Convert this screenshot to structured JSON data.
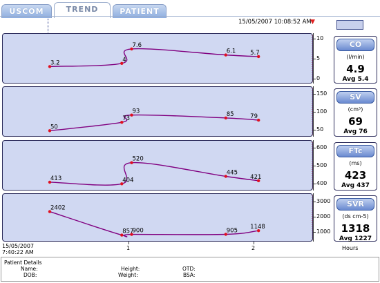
{
  "tabs": [
    {
      "label": "USCOM",
      "active": false
    },
    {
      "label": "TREND",
      "active": true
    },
    {
      "label": "PATIENT",
      "active": false
    }
  ],
  "header": {
    "timestamp": "15/05/2007   10:08:52 AM",
    "marker_icon": "red-down-arrow"
  },
  "x_axis": {
    "start_label": "15/05/2007",
    "start_time": "7:40:22 AM",
    "ticks": [
      "1",
      "2"
    ],
    "unit": "Hours"
  },
  "params": [
    {
      "name": "CO",
      "unit": "(l/min)",
      "value": "4.9",
      "avg": "Avg 5.4",
      "color": "#800080"
    },
    {
      "name": "SV",
      "unit": "(cm³)",
      "value": "69",
      "avg": "Avg 76",
      "color": "#800080"
    },
    {
      "name": "FTc",
      "unit": "(ms)",
      "value": "423",
      "avg": "Avg 437",
      "color": "#800080"
    },
    {
      "name": "SVR",
      "unit": "(ds cm-5)",
      "value": "1318",
      "avg": "Avg 1227",
      "color": "#800080"
    }
  ],
  "chart_data": [
    {
      "type": "line",
      "title": "CO",
      "x": [
        0,
        0.88,
        1.0,
        2.15,
        2.55
      ],
      "values": [
        3.2,
        4,
        7.6,
        6.1,
        5.7
      ],
      "labels": [
        "3.2",
        "4",
        "7.6",
        "6.1",
        "5.7"
      ],
      "ylim": [
        0,
        10
      ],
      "yticks": [
        "10",
        "5",
        "0"
      ],
      "xlabel": "Hours"
    },
    {
      "type": "line",
      "title": "SV",
      "x": [
        0,
        0.88,
        1.0,
        2.15,
        2.55
      ],
      "values": [
        50,
        73,
        93,
        85,
        79
      ],
      "labels": [
        "50",
        "73",
        "93",
        "85",
        "79"
      ],
      "ylim": [
        45,
        155
      ],
      "yticks": [
        "150",
        "100",
        "50"
      ],
      "xlabel": "Hours"
    },
    {
      "type": "line",
      "title": "FTc",
      "x": [
        0,
        0.88,
        1.0,
        2.15,
        2.55
      ],
      "values": [
        413,
        404,
        520,
        445,
        421
      ],
      "labels": [
        "413",
        "404",
        "520",
        "445",
        "421"
      ],
      "ylim": [
        390,
        610
      ],
      "yticks": [
        "600",
        "500",
        "400"
      ],
      "xlabel": "Hours"
    },
    {
      "type": "line",
      "title": "SVR",
      "x": [
        0,
        0.88,
        1.0,
        2.15,
        2.55
      ],
      "values": [
        2402,
        857,
        900,
        905,
        1148
      ],
      "labels": [
        "2402",
        "857",
        "900",
        "905",
        "1148"
      ],
      "ylim": [
        700,
        3200
      ],
      "yticks": [
        "3000",
        "2000",
        "1000"
      ],
      "xlabel": "Hours"
    }
  ],
  "patient": {
    "title": "Patient Details",
    "name_label": "Name:",
    "dob_label": "DOB:",
    "height_label": "Height:",
    "weight_label": "Weight:",
    "otd_label": "OTD:",
    "bsa_label": "BSA:"
  }
}
